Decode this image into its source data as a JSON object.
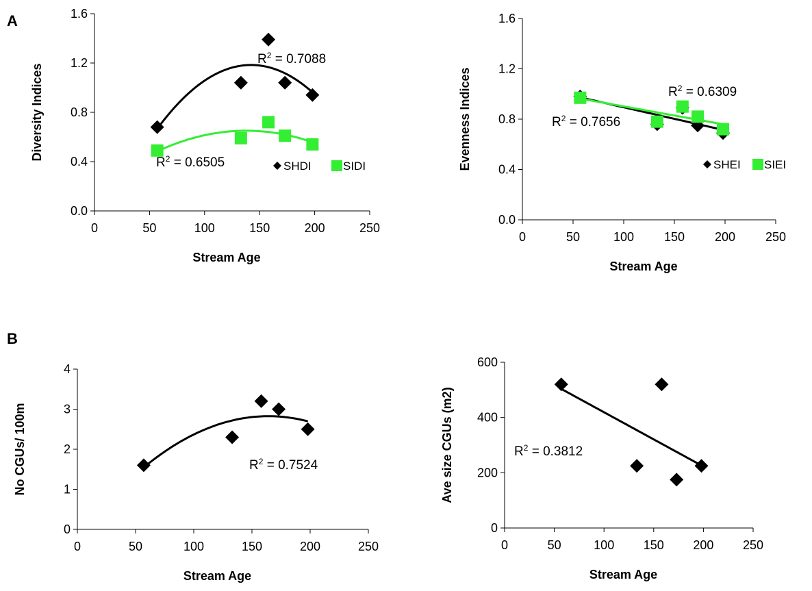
{
  "panel_labels": [
    "A",
    "B"
  ],
  "chart_data": [
    {
      "type": "scatter",
      "xlabel": "Stream Age",
      "ylabel": "Diversity Indices",
      "xlim": [
        0,
        250
      ],
      "ylim": [
        0,
        1.6
      ],
      "xticks": [
        "0",
        "50",
        "100",
        "150",
        "200",
        "250"
      ],
      "yticks": [
        "0.0",
        "0.4",
        "0.8",
        "1.2",
        "1.6"
      ],
      "grid": false,
      "legend": "bottom-right",
      "series": [
        {
          "name": "SHDI",
          "marker": "diamond",
          "color": "#000000",
          "x": [
            57,
            133,
            158,
            173,
            198
          ],
          "y": [
            0.68,
            1.04,
            1.39,
            1.04,
            0.94
          ],
          "trendline": {
            "kind": "quadratic",
            "r2_label": "R2 = 0.7088"
          }
        },
        {
          "name": "SIDI",
          "marker": "square",
          "color": "#33ee33",
          "x": [
            57,
            133,
            158,
            173,
            198
          ],
          "y": [
            0.49,
            0.59,
            0.72,
            0.61,
            0.54
          ],
          "trendline": {
            "kind": "quadratic",
            "r2_label": "R2 = 0.6505"
          }
        }
      ]
    },
    {
      "type": "scatter",
      "xlabel": "Stream Age",
      "ylabel": "Evenness Indices",
      "xlim": [
        0,
        250
      ],
      "ylim": [
        0,
        1.6
      ],
      "xticks": [
        "0",
        "50",
        "100",
        "150",
        "200",
        "250"
      ],
      "yticks": [
        "0.0",
        "0.4",
        "0.8",
        "1.2",
        "1.6"
      ],
      "grid": false,
      "legend": "bottom-right",
      "series": [
        {
          "name": "SHEI",
          "marker": "diamond",
          "color": "#000000",
          "x": [
            57,
            133,
            158,
            173,
            198
          ],
          "y": [
            0.98,
            0.76,
            0.89,
            0.75,
            0.69
          ],
          "trendline": {
            "kind": "linear",
            "r2_label": "R2 = 0.7656"
          }
        },
        {
          "name": "SIEI",
          "marker": "square",
          "color": "#33ee33",
          "x": [
            57,
            133,
            158,
            173,
            198
          ],
          "y": [
            0.97,
            0.78,
            0.9,
            0.82,
            0.72
          ],
          "trendline": {
            "kind": "linear",
            "r2_label": "R2 = 0.6309"
          }
        }
      ]
    },
    {
      "type": "scatter",
      "xlabel": "Stream Age",
      "ylabel": "No CGUs/ 100m",
      "xlim": [
        0,
        250
      ],
      "ylim": [
        0,
        4
      ],
      "xticks": [
        "0",
        "50",
        "100",
        "150",
        "200",
        "250"
      ],
      "yticks": [
        "0",
        "1",
        "2",
        "3",
        "4"
      ],
      "grid": false,
      "series": [
        {
          "marker": "diamond",
          "color": "#000000",
          "x": [
            57,
            133,
            158,
            173,
            198
          ],
          "y": [
            1.6,
            2.3,
            3.2,
            3.0,
            2.5
          ],
          "trendline": {
            "kind": "quadratic",
            "r2_label": "R2 = 0.7524"
          }
        }
      ]
    },
    {
      "type": "scatter",
      "xlabel": "Stream Age",
      "ylabel": "Ave size CGUs (m2)",
      "xlim": [
        0,
        250
      ],
      "ylim": [
        0,
        600
      ],
      "xticks": [
        "0",
        "50",
        "100",
        "150",
        "200",
        "250"
      ],
      "yticks": [
        "0",
        "200",
        "400",
        "600"
      ],
      "grid": false,
      "series": [
        {
          "marker": "diamond",
          "color": "#000000",
          "x": [
            57,
            133,
            158,
            173,
            198
          ],
          "y": [
            520,
            225,
            520,
            175,
            225
          ],
          "trendline": {
            "kind": "linear",
            "r2_label": "R2 = 0.3812"
          }
        }
      ]
    }
  ]
}
